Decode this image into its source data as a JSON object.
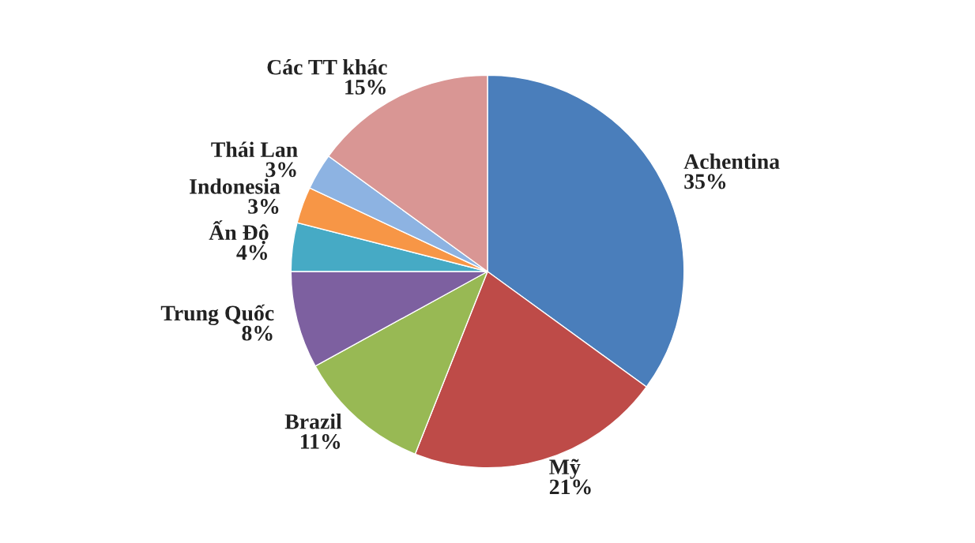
{
  "chart_data": {
    "type": "pie",
    "categories": [
      "Achentina",
      "Mỹ",
      "Brazil",
      "Trung Quốc",
      "Ấn Độ",
      "Indonesia",
      "Thái Lan",
      "Các TT khác"
    ],
    "values": [
      35,
      21,
      11,
      8,
      4,
      3,
      3,
      15
    ],
    "value_labels": [
      "35%",
      "21%",
      "11%",
      "8%",
      "4%",
      "3%",
      "3%",
      "15%"
    ],
    "colors": [
      "#4a7ebb",
      "#be4b48",
      "#98b954",
      "#7d60a0",
      "#46aac5",
      "#f79646",
      "#8db3e2",
      "#d99694"
    ]
  }
}
